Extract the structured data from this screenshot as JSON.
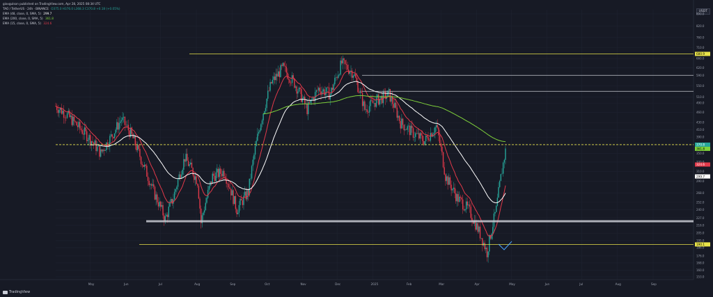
{
  "header": {
    "publisher": "giovgulson published on TradingView.com, Apr 28, 2025 08:34 UTC",
    "symbol": "TAO / TetherUS · 24h · BINANCE",
    "ohlc": "O375.0 H376.0 L368.3 C370.8 +0.18 (+0.05%)",
    "indicators": [
      {
        "label": "EMA (48, close, 0, SMA, 5)",
        "value": "299.7",
        "color": "#ffffff"
      },
      {
        "label": "EMA (200, close, 0, SMA, 5)",
        "value": "361.8",
        "color": "#7fd13b"
      },
      {
        "label": "EMA (15, close, 0, SMA, 5)",
        "value": "324.6",
        "color": "#e2394a"
      }
    ]
  },
  "currency_label": "USDT",
  "watermark": "TradingView",
  "chart_data": {
    "type": "candlestick",
    "x_ticks": [
      "May",
      "Jun",
      "Jul",
      "Aug",
      "Sep",
      "Oct",
      "Nov",
      "Dec",
      "2025",
      "Feb",
      "Mar",
      "Apr",
      "May",
      "Jun",
      "Jul",
      "Aug",
      "Sep"
    ],
    "y_ticks": [
      "890.0",
      "820.0",
      "760.0",
      "710.0",
      "660.0",
      "620.0",
      "590.0",
      "550.0",
      "510.0",
      "490.0",
      "460.0",
      "430.0",
      "410.0",
      "390.0",
      "370.0",
      "350.0",
      "330.0",
      "310.0",
      "290.0",
      "268.0",
      "252.0",
      "240.0",
      "227.0",
      "216.0",
      "205.0",
      "195.0",
      "186.0",
      "176.0",
      "168.0",
      "160.0",
      "153.0"
    ],
    "price_labels": [
      {
        "text": "680.9",
        "value": 680.9,
        "bg": "#e8e34a",
        "fg": "#000000"
      },
      {
        "text": "370.8",
        "value": 370.8,
        "bg": "#26a69a",
        "fg": "#ffffff"
      },
      {
        "text": "361.8",
        "value": 361.8,
        "bg": "#7fd13b",
        "fg": "#000000"
      },
      {
        "text": "324.6",
        "value": 324.6,
        "bg": "#e2394a",
        "fg": "#ffffff"
      },
      {
        "text": "299.7",
        "value": 299.7,
        "bg": "#ffffff",
        "fg": "#000000"
      },
      {
        "text": "190.1",
        "value": 190.1,
        "bg": "#e8e34a",
        "fg": "#000000"
      }
    ],
    "levels": [
      {
        "value": 680.9,
        "color": "#e8e34a",
        "style": "solid"
      },
      {
        "value": 590.0,
        "color": "#c8cad2",
        "style": "solid"
      },
      {
        "value": 530.0,
        "color": "#c8cad2",
        "style": "solid"
      },
      {
        "value": 370.8,
        "color": "#e8e34a",
        "style": "dashed"
      },
      {
        "value": 222.0,
        "color": "#c8cad2",
        "style": "band"
      },
      {
        "value": 190.1,
        "color": "#e8e34a",
        "style": "solid"
      }
    ],
    "close_series": [
      {
        "date": "2024-04-01",
        "close": 480
      },
      {
        "date": "2024-04-10",
        "close": 455
      },
      {
        "date": "2024-04-20",
        "close": 420
      },
      {
        "date": "2024-05-01",
        "close": 385
      },
      {
        "date": "2024-05-10",
        "close": 350
      },
      {
        "date": "2024-05-20",
        "close": 395
      },
      {
        "date": "2024-05-28",
        "close": 440
      },
      {
        "date": "2024-06-05",
        "close": 400
      },
      {
        "date": "2024-06-15",
        "close": 330
      },
      {
        "date": "2024-06-25",
        "close": 270
      },
      {
        "date": "2024-07-05",
        "close": 225
      },
      {
        "date": "2024-07-12",
        "close": 260
      },
      {
        "date": "2024-07-22",
        "close": 340
      },
      {
        "date": "2024-08-02",
        "close": 290
      },
      {
        "date": "2024-08-05",
        "close": 220
      },
      {
        "date": "2024-08-15",
        "close": 300
      },
      {
        "date": "2024-08-25",
        "close": 310
      },
      {
        "date": "2024-09-05",
        "close": 240
      },
      {
        "date": "2024-09-15",
        "close": 270
      },
      {
        "date": "2024-09-25",
        "close": 420
      },
      {
        "date": "2024-10-05",
        "close": 560
      },
      {
        "date": "2024-10-15",
        "close": 620
      },
      {
        "date": "2024-10-25",
        "close": 560
      },
      {
        "date": "2024-11-05",
        "close": 470
      },
      {
        "date": "2024-11-15",
        "close": 540
      },
      {
        "date": "2024-11-25",
        "close": 520
      },
      {
        "date": "2024-12-05",
        "close": 640
      },
      {
        "date": "2024-12-15",
        "close": 600
      },
      {
        "date": "2024-12-25",
        "close": 470
      },
      {
        "date": "2025-01-05",
        "close": 500
      },
      {
        "date": "2025-01-15",
        "close": 520
      },
      {
        "date": "2025-01-25",
        "close": 430
      },
      {
        "date": "2025-02-05",
        "close": 400
      },
      {
        "date": "2025-02-15",
        "close": 380
      },
      {
        "date": "2025-02-25",
        "close": 420
      },
      {
        "date": "2025-03-05",
        "close": 300
      },
      {
        "date": "2025-03-15",
        "close": 260
      },
      {
        "date": "2025-03-25",
        "close": 240
      },
      {
        "date": "2025-04-05",
        "close": 200
      },
      {
        "date": "2025-04-10",
        "close": 180
      },
      {
        "date": "2025-04-18",
        "close": 240
      },
      {
        "date": "2025-04-27",
        "close": 370
      }
    ]
  }
}
